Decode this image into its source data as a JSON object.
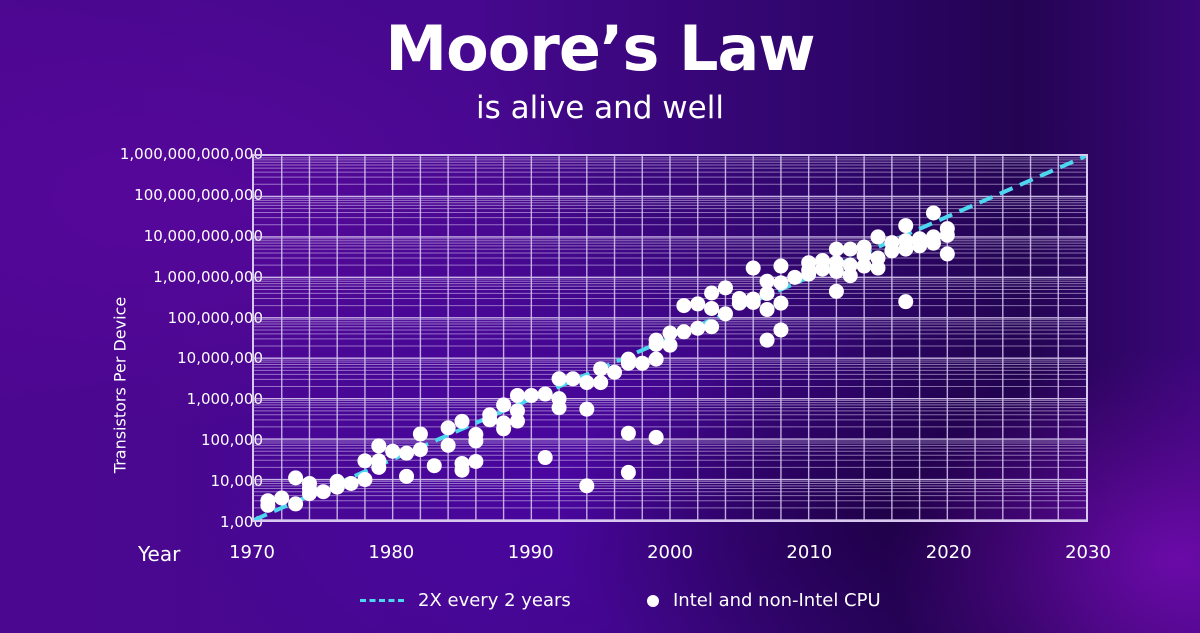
{
  "header": {
    "title": "Moore’s Law",
    "subtitle": "is alive and well"
  },
  "colors": {
    "background": "#45088e",
    "trend_line": "#4fd6ef",
    "points": "#ffffff",
    "grid": "#d8c8f0"
  },
  "axes": {
    "ylabel": "Transistors Per Device",
    "xlabel": "Year",
    "y_ticks": [
      "1,000,000,000,000",
      "100,000,000,000",
      "10,000,000,000",
      "1,000,000,000",
      "100,000,000",
      "10,000,000",
      "1,000,000",
      "100,000",
      "10,000",
      "1,000"
    ],
    "x_ticks": [
      "1970",
      "1980",
      "1990",
      "2000",
      "2010",
      "2020",
      "2030"
    ]
  },
  "legend": {
    "trend_label": "2X every 2 years",
    "points_label": "Intel and non-Intel CPU"
  },
  "chart_data": {
    "type": "scatter",
    "title": "Moore’s Law",
    "subtitle": "is alive and well",
    "xlabel": "Year",
    "ylabel": "Transistors Per Device",
    "xlim": [
      1970,
      2030
    ],
    "ylim": [
      1000,
      1000000000000
    ],
    "yscale": "log",
    "grid": true,
    "legend_position": "bottom",
    "series": [
      {
        "name": "2X every 2 years",
        "type": "line",
        "style": "dashed",
        "x": [
          1970,
          2030
        ],
        "y": [
          1000,
          1000000000000
        ]
      },
      {
        "name": "Intel and non-Intel CPU",
        "type": "scatter",
        "points": [
          [
            1971,
            2300
          ],
          [
            1971,
            3000
          ],
          [
            1972,
            3500
          ],
          [
            1973,
            2500
          ],
          [
            1973,
            11000
          ],
          [
            1974,
            4500
          ],
          [
            1974,
            6000
          ],
          [
            1974,
            8000
          ],
          [
            1975,
            5000
          ],
          [
            1976,
            6500
          ],
          [
            1976,
            9000
          ],
          [
            1977,
            8000
          ],
          [
            1978,
            29000
          ],
          [
            1978,
            10000
          ],
          [
            1979,
            68000
          ],
          [
            1979,
            29000
          ],
          [
            1979,
            20000
          ],
          [
            1980,
            50000
          ],
          [
            1981,
            12000
          ],
          [
            1981,
            45000
          ],
          [
            1982,
            134000
          ],
          [
            1982,
            55000
          ],
          [
            1983,
            22000
          ],
          [
            1984,
            190000
          ],
          [
            1984,
            70000
          ],
          [
            1985,
            275000
          ],
          [
            1985,
            25000
          ],
          [
            1985,
            17000
          ],
          [
            1986,
            130000
          ],
          [
            1986,
            90000
          ],
          [
            1986,
            28000
          ],
          [
            1987,
            400000
          ],
          [
            1987,
            300000
          ],
          [
            1988,
            250000
          ],
          [
            1988,
            700000
          ],
          [
            1988,
            180000
          ],
          [
            1989,
            1200000
          ],
          [
            1989,
            500000
          ],
          [
            1989,
            280000
          ],
          [
            1990,
            1200000
          ],
          [
            1991,
            1300000
          ],
          [
            1991,
            35000
          ],
          [
            1992,
            3100000
          ],
          [
            1992,
            1000000
          ],
          [
            1992,
            600000
          ],
          [
            1993,
            3100000
          ],
          [
            1994,
            2500000
          ],
          [
            1994,
            550000
          ],
          [
            1994,
            7000
          ],
          [
            1995,
            5500000
          ],
          [
            1995,
            2500000
          ],
          [
            1996,
            4500000
          ],
          [
            1997,
            9500000
          ],
          [
            1997,
            7500000
          ],
          [
            1997,
            140000
          ],
          [
            1997,
            15000
          ],
          [
            1998,
            7500000
          ],
          [
            1999,
            22000000
          ],
          [
            1999,
            28000000
          ],
          [
            1999,
            9500000
          ],
          [
            1999,
            110000
          ],
          [
            2000,
            42000000
          ],
          [
            2000,
            21000000
          ],
          [
            2001,
            45000000
          ],
          [
            2001,
            200000000
          ],
          [
            2002,
            220000000
          ],
          [
            2002,
            55000000
          ],
          [
            2003,
            410000000
          ],
          [
            2003,
            170000000
          ],
          [
            2003,
            60000000
          ],
          [
            2004,
            125000000
          ],
          [
            2004,
            550000000
          ],
          [
            2005,
            230000000
          ],
          [
            2005,
            300000000
          ],
          [
            2006,
            290000000
          ],
          [
            2006,
            1700000000
          ],
          [
            2006,
            240000000
          ],
          [
            2007,
            800000000
          ],
          [
            2007,
            400000000
          ],
          [
            2007,
            160000000
          ],
          [
            2007,
            28000000
          ],
          [
            2008,
            1900000000
          ],
          [
            2008,
            730000000
          ],
          [
            2008,
            230000000
          ],
          [
            2008,
            50000000
          ],
          [
            2009,
            1000000000
          ],
          [
            2010,
            2300000000
          ],
          [
            2010,
            1200000000
          ],
          [
            2010,
            1500000000
          ],
          [
            2011,
            2600000000
          ],
          [
            2011,
            1600000000
          ],
          [
            2012,
            5000000000
          ],
          [
            2012,
            1400000000
          ],
          [
            2012,
            2300000000
          ],
          [
            2012,
            450000000
          ],
          [
            2013,
            5000000000
          ],
          [
            2013,
            2000000000
          ],
          [
            2013,
            1100000000
          ],
          [
            2014,
            5600000000
          ],
          [
            2014,
            3500000000
          ],
          [
            2014,
            1900000000
          ],
          [
            2015,
            10000000000
          ],
          [
            2015,
            3000000000
          ],
          [
            2015,
            1700000000
          ],
          [
            2016,
            7200000000
          ],
          [
            2016,
            4500000000
          ],
          [
            2017,
            19000000000
          ],
          [
            2017,
            8000000000
          ],
          [
            2017,
            5000000000
          ],
          [
            2017,
            250000000
          ],
          [
            2018,
            9000000000
          ],
          [
            2018,
            6000000000
          ],
          [
            2019,
            39000000000
          ],
          [
            2019,
            10000000000
          ],
          [
            2019,
            7000000000
          ],
          [
            2020,
            16000000000
          ],
          [
            2020,
            11000000000
          ],
          [
            2020,
            3800000000
          ]
        ]
      }
    ]
  }
}
